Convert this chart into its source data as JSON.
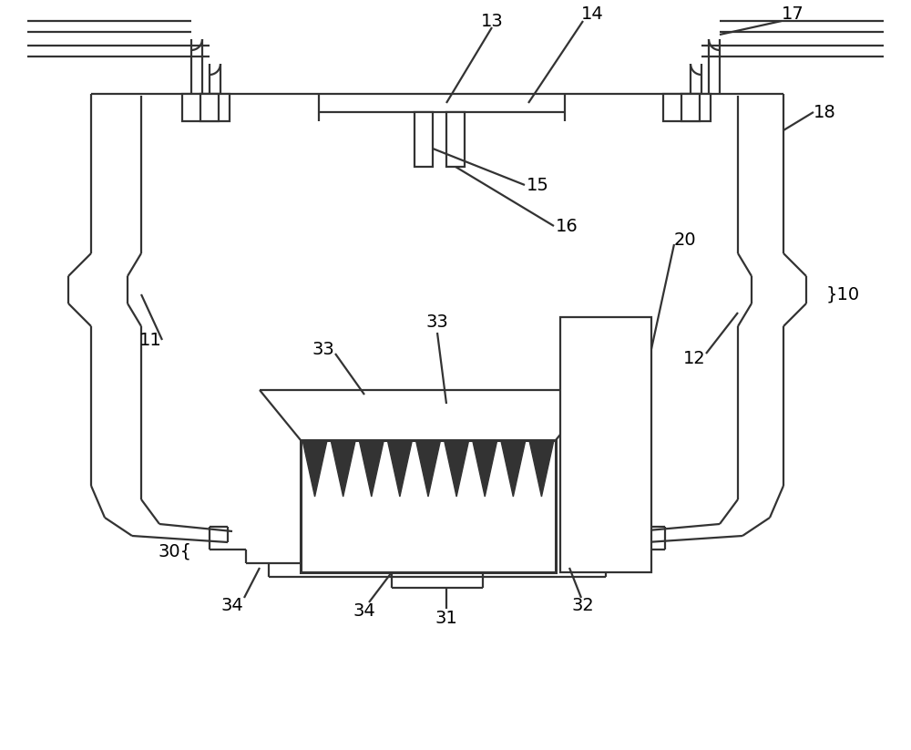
{
  "bg_color": "#ffffff",
  "line_color": "#333333",
  "lw": 1.6,
  "lw2": 2.2,
  "fig_width": 10.0,
  "fig_height": 8.23,
  "dpi": 100
}
